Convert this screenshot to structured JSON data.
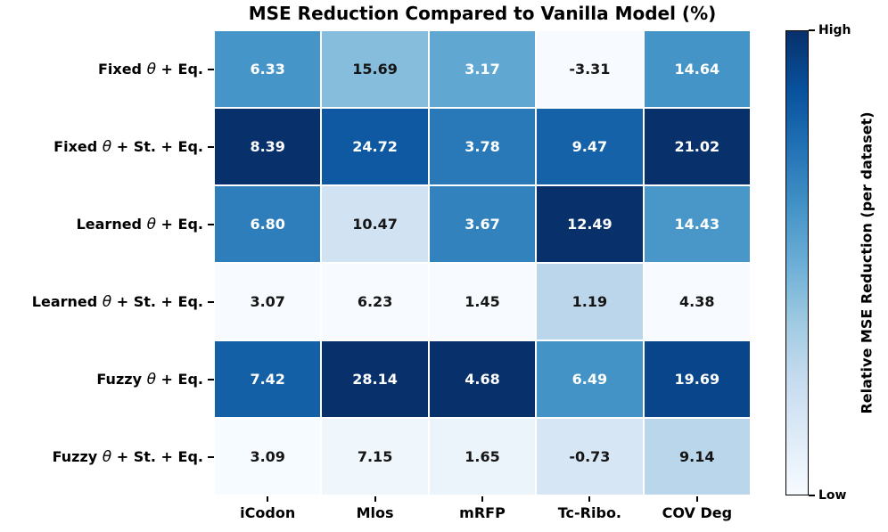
{
  "chart_data": {
    "type": "heatmap",
    "title": "MSE Reduction Compared to Vanilla Model (%)",
    "rows": [
      "Fixed θ + Eq.",
      "Fixed θ + St. + Eq.",
      "Learned θ + Eq.",
      "Learned θ + St. + Eq.",
      "Fuzzy θ + Eq.",
      "Fuzzy θ + St. + Eq."
    ],
    "columns": [
      "iCodon",
      "Mlos",
      "mRFP",
      "Tc-Ribo.",
      "COV Deg"
    ],
    "values": [
      [
        6.33,
        15.69,
        3.17,
        -3.31,
        14.64
      ],
      [
        8.39,
        24.72,
        3.78,
        9.47,
        21.02
      ],
      [
        6.8,
        10.47,
        3.67,
        12.49,
        14.43
      ],
      [
        3.07,
        6.23,
        1.45,
        1.19,
        4.38
      ],
      [
        7.42,
        28.14,
        4.68,
        6.49,
        19.69
      ],
      [
        3.09,
        7.15,
        1.65,
        -0.73,
        9.14
      ]
    ],
    "value_decimals": 2,
    "normalization": "per_column_min_max",
    "colormap": {
      "name": "Blues",
      "stops": [
        "#f7fbff",
        "#deebf7",
        "#c6dbef",
        "#9ecae1",
        "#6baed6",
        "#4292c6",
        "#2171b5",
        "#08519c",
        "#08306b"
      ]
    },
    "annotation_colors": {
      "dark_cell_text": "#ffffff",
      "light_cell_text": "#151515",
      "white_text_threshold": 0.5
    },
    "colorbar": {
      "label": "Relative MSE Reduction (per dataset)",
      "top_tick": "High",
      "bottom_tick": "Low"
    },
    "layout_hints": {
      "grid": "off",
      "cell_border_color": "#ffffff",
      "colorbar_position": "right"
    }
  }
}
